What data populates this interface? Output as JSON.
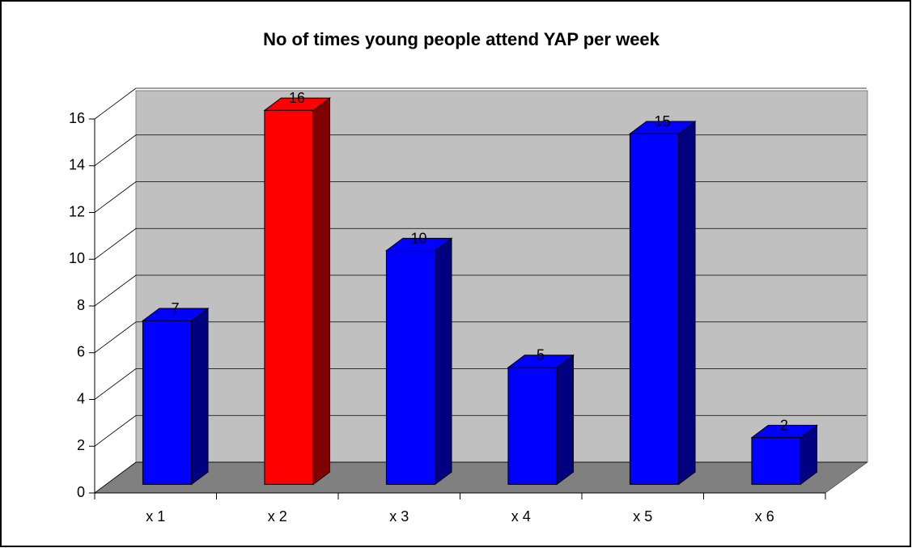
{
  "chart_data": {
    "type": "bar3d",
    "title": "No of times young people attend YAP per week",
    "categories": [
      "x 1",
      "x 2",
      "x 3",
      "x 4",
      "x 5",
      "x 6"
    ],
    "values": [
      7,
      16,
      10,
      5,
      15,
      2
    ],
    "colors": [
      "#0000ff",
      "#ff0000",
      "#0000ff",
      "#0000ff",
      "#0000ff",
      "#0000ff"
    ],
    "ylim": [
      0,
      16
    ],
    "yticks": [
      0,
      2,
      4,
      6,
      8,
      10,
      12,
      14,
      16
    ],
    "grid": true
  }
}
